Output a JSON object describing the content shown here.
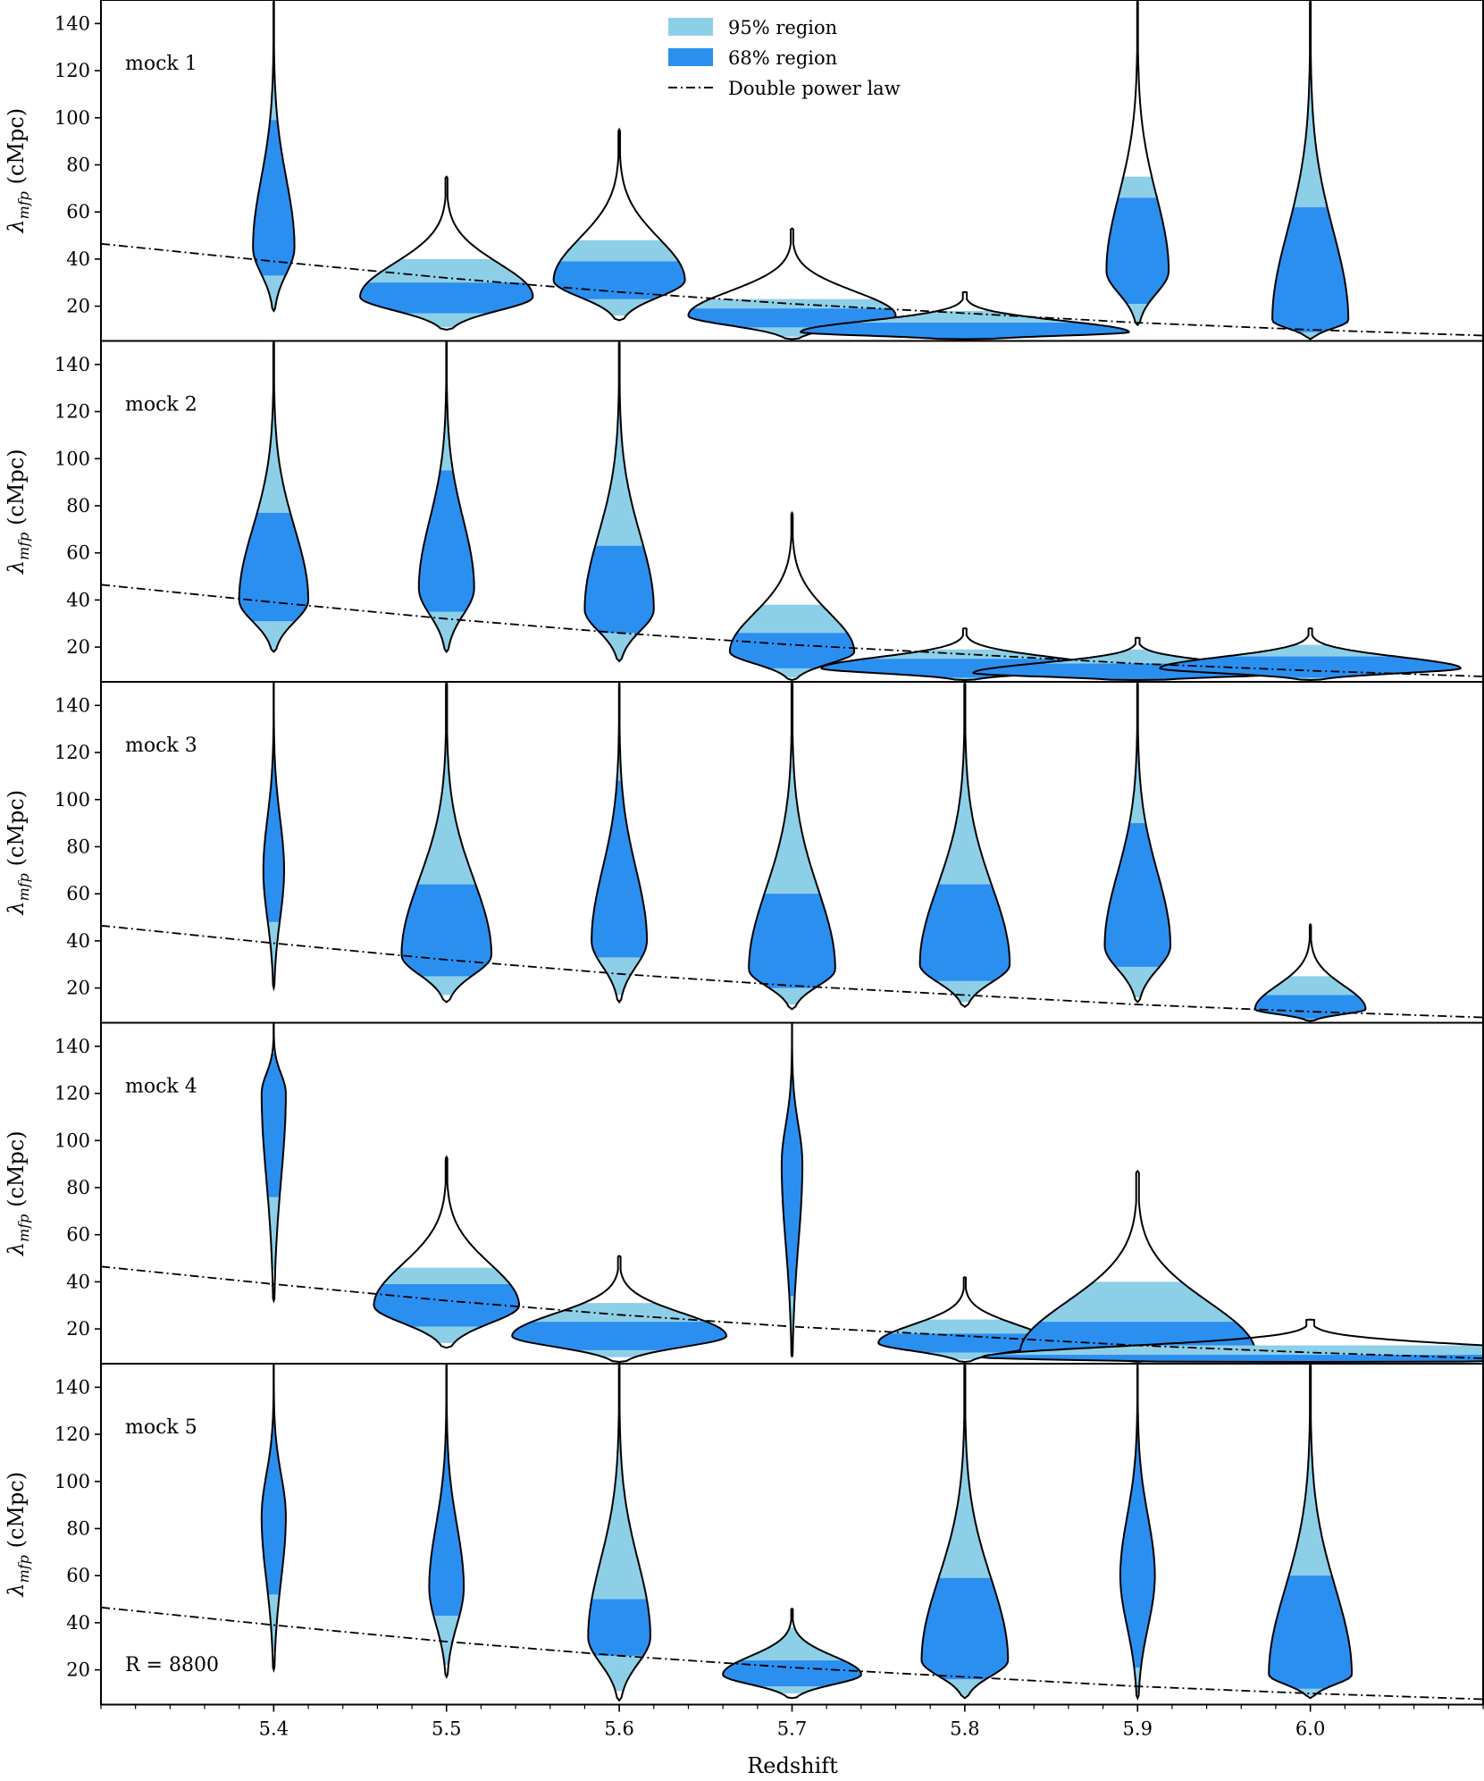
{
  "chart_data": {
    "type": "violin",
    "xlabel": "Redshift",
    "ylabel_symbol": "λ",
    "ylabel_subscript": "mfp",
    "ylabel_unit": "(cMpc)",
    "xlim": [
      5.3,
      6.1
    ],
    "ylim": [
      6,
      150
    ],
    "x_ticks": [
      5.4,
      5.5,
      5.6,
      5.7,
      5.8,
      5.9,
      6.0
    ],
    "x_tick_labels": [
      "5.4",
      "5.5",
      "5.6",
      "5.7",
      "5.8",
      "5.9",
      "6.0"
    ],
    "y_ticks": [
      20,
      40,
      60,
      80,
      100,
      120,
      140
    ],
    "y_tick_labels": [
      "20",
      "40",
      "60",
      "80",
      "100",
      "120",
      "140"
    ],
    "colors": {
      "region95": "#8ecfe8",
      "region68": "#2b8ff0",
      "outline": "#000000",
      "model_line": "#000000"
    },
    "legend": {
      "position": "top-center",
      "entries": [
        {
          "label": "95% region",
          "kind": "patch",
          "color": "#8ecfe8"
        },
        {
          "label": "68% region",
          "kind": "patch",
          "color": "#2b8ff0"
        },
        {
          "label": "Double power law",
          "kind": "dashdot-line"
        }
      ]
    },
    "annotation": "R = 8800",
    "model": {
      "name": "Double power law",
      "points": [
        [
          5.3,
          46.5
        ],
        [
          5.4,
          39
        ],
        [
          5.5,
          32
        ],
        [
          5.6,
          26
        ],
        [
          5.7,
          21
        ],
        [
          5.8,
          17
        ],
        [
          5.9,
          13
        ],
        [
          6.0,
          10
        ],
        [
          6.1,
          7.5
        ]
      ]
    },
    "panels": [
      {
        "name": "mock 1",
        "violins": [
          {
            "z": 5.4,
            "min": 18,
            "max": 150,
            "lo95": 18,
            "hi95": 150,
            "lo68": 33,
            "hi68": 99,
            "mode": 45,
            "width": 0.012
          },
          {
            "z": 5.5,
            "min": 10,
            "max": 75,
            "lo95": 11,
            "hi95": 40,
            "lo68": 17,
            "hi68": 30,
            "mode": 24,
            "width": 0.05
          },
          {
            "z": 5.6,
            "min": 14,
            "max": 95,
            "lo95": 16,
            "hi95": 48,
            "lo68": 23,
            "hi68": 39,
            "mode": 31,
            "width": 0.038
          },
          {
            "z": 5.7,
            "min": 6,
            "max": 53,
            "lo95": 7,
            "hi95": 23,
            "lo68": 11,
            "hi68": 19,
            "mode": 16,
            "width": 0.06
          },
          {
            "z": 5.8,
            "min": 6,
            "max": 26,
            "lo95": 6,
            "hi95": 18,
            "lo68": 6,
            "hi68": 13,
            "mode": 9,
            "width": 0.095
          },
          {
            "z": 5.9,
            "min": 12,
            "max": 150,
            "lo95": 13,
            "hi95": 75,
            "lo68": 21,
            "hi68": 66,
            "mode": 35,
            "width": 0.018
          },
          {
            "z": 6.0,
            "min": 6,
            "max": 150,
            "lo95": 6,
            "hi95": 150,
            "lo68": 9,
            "hi68": 62,
            "mode": 14,
            "width": 0.022
          }
        ]
      },
      {
        "name": "mock 2",
        "violins": [
          {
            "z": 5.4,
            "min": 18,
            "max": 150,
            "lo95": 18,
            "hi95": 150,
            "lo68": 31,
            "hi68": 77,
            "mode": 40,
            "width": 0.02
          },
          {
            "z": 5.5,
            "min": 18,
            "max": 150,
            "lo95": 18,
            "hi95": 150,
            "lo68": 35,
            "hi68": 95,
            "mode": 45,
            "width": 0.016
          },
          {
            "z": 5.6,
            "min": 14,
            "max": 150,
            "lo95": 14,
            "hi95": 150,
            "lo68": 26,
            "hi68": 63,
            "mode": 36,
            "width": 0.02
          },
          {
            "z": 5.7,
            "min": 6,
            "max": 77,
            "lo95": 7,
            "hi95": 38,
            "lo68": 11,
            "hi68": 26,
            "mode": 18,
            "width": 0.036
          },
          {
            "z": 5.8,
            "min": 6,
            "max": 28,
            "lo95": 6,
            "hi95": 19,
            "lo68": 7,
            "hi68": 15,
            "mode": 11,
            "width": 0.083
          },
          {
            "z": 5.9,
            "min": 6,
            "max": 24,
            "lo95": 6,
            "hi95": 19,
            "lo68": 6,
            "hi68": 13,
            "mode": 9,
            "width": 0.095
          },
          {
            "z": 6.0,
            "min": 6,
            "max": 28,
            "lo95": 6,
            "hi95": 21,
            "lo68": 7,
            "hi68": 16,
            "mode": 11,
            "width": 0.087
          }
        ]
      },
      {
        "name": "mock 3",
        "violins": [
          {
            "z": 5.4,
            "min": 20,
            "max": 150,
            "lo95": 25,
            "hi95": 150,
            "lo68": 48,
            "hi68": 125,
            "mode": 70,
            "width": 0.006
          },
          {
            "z": 5.5,
            "min": 14,
            "max": 150,
            "lo95": 17,
            "hi95": 140,
            "lo68": 25,
            "hi68": 64,
            "mode": 34,
            "width": 0.026
          },
          {
            "z": 5.6,
            "min": 14,
            "max": 150,
            "lo95": 17,
            "hi95": 150,
            "lo68": 33,
            "hi68": 108,
            "mode": 40,
            "width": 0.016
          },
          {
            "z": 5.7,
            "min": 11,
            "max": 150,
            "lo95": 13,
            "hi95": 150,
            "lo68": 20,
            "hi68": 60,
            "mode": 28,
            "width": 0.025
          },
          {
            "z": 5.8,
            "min": 12,
            "max": 150,
            "lo95": 14,
            "hi95": 150,
            "lo68": 23,
            "hi68": 64,
            "mode": 30,
            "width": 0.026
          },
          {
            "z": 5.9,
            "min": 14,
            "max": 150,
            "lo95": 16,
            "hi95": 150,
            "lo68": 29,
            "hi68": 90,
            "mode": 38,
            "width": 0.019
          },
          {
            "z": 6.0,
            "min": 6,
            "max": 47,
            "lo95": 6,
            "hi95": 25,
            "lo68": 7,
            "hi68": 17,
            "mode": 11,
            "width": 0.032
          }
        ]
      },
      {
        "name": "mock 4",
        "violins": [
          {
            "z": 5.4,
            "min": 32,
            "max": 150,
            "lo95": 45,
            "hi95": 150,
            "lo68": 76,
            "hi68": 137,
            "mode": 120,
            "width": 0.007
          },
          {
            "z": 5.5,
            "min": 12,
            "max": 93,
            "lo95": 14,
            "hi95": 46,
            "lo68": 21,
            "hi68": 39,
            "mode": 30,
            "width": 0.042
          },
          {
            "z": 5.6,
            "min": 6,
            "max": 51,
            "lo95": 8,
            "hi95": 31,
            "lo68": 11,
            "hi68": 23,
            "mode": 17,
            "width": 0.062
          },
          {
            "z": 5.7,
            "min": 8,
            "max": 150,
            "lo95": 11,
            "hi95": 150,
            "lo68": 34,
            "hi68": 135,
            "mode": 90,
            "width": 0.006
          },
          {
            "z": 5.8,
            "min": 6,
            "max": 42,
            "lo95": 7,
            "hi95": 24,
            "lo68": 10,
            "hi68": 18,
            "mode": 14,
            "width": 0.05
          },
          {
            "z": 5.9,
            "min": 6,
            "max": 87,
            "lo95": 6,
            "hi95": 40,
            "lo68": 6,
            "hi68": 23,
            "mode": 10,
            "width": 0.068
          },
          {
            "z": 6.0,
            "min": 6,
            "max": 24,
            "lo95": 6,
            "hi95": 13,
            "lo68": 6,
            "hi68": 9,
            "mode": 8,
            "width": 0.19
          }
        ]
      },
      {
        "name": "mock 5",
        "violins": [
          {
            "z": 5.4,
            "min": 20,
            "max": 150,
            "lo95": 28,
            "hi95": 150,
            "lo68": 52,
            "hi68": 130,
            "mode": 85,
            "width": 0.007
          },
          {
            "z": 5.5,
            "min": 17,
            "max": 150,
            "lo95": 22,
            "hi95": 150,
            "lo68": 43,
            "hi68": 118,
            "mode": 55,
            "width": 0.01
          },
          {
            "z": 5.6,
            "min": 7,
            "max": 150,
            "lo95": 11,
            "hi95": 150,
            "lo68": 26,
            "hi68": 50,
            "mode": 34,
            "width": 0.018
          },
          {
            "z": 5.7,
            "min": 8,
            "max": 46,
            "lo95": 10,
            "hi95": 38,
            "lo68": 13,
            "hi68": 24,
            "mode": 18,
            "width": 0.04
          },
          {
            "z": 5.8,
            "min": 8,
            "max": 150,
            "lo95": 9,
            "hi95": 150,
            "lo68": 16,
            "hi68": 59,
            "mode": 24,
            "width": 0.025
          },
          {
            "z": 5.9,
            "min": 8,
            "max": 150,
            "lo95": 10,
            "hi95": 150,
            "lo68": 21,
            "hi68": 130,
            "mode": 60,
            "width": 0.01
          },
          {
            "z": 6.0,
            "min": 8,
            "max": 150,
            "lo95": 9,
            "hi95": 150,
            "lo68": 12,
            "hi68": 60,
            "mode": 18,
            "width": 0.024
          }
        ]
      }
    ]
  }
}
